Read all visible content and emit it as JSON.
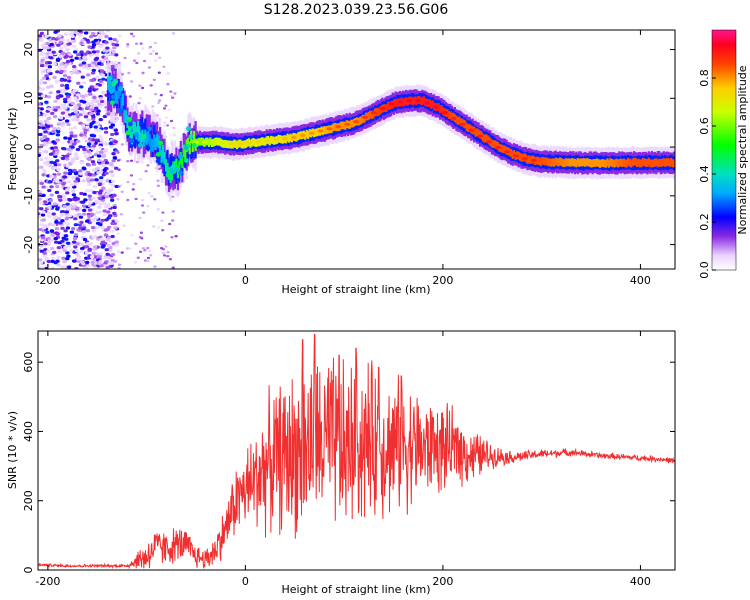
{
  "page": {
    "title": "S128.2023.039.23.56.G06"
  },
  "chart_data": [
    {
      "type": "heatmap",
      "xlabel": "Height of straight line (km)",
      "ylabel": "Frequency (Hz)",
      "xlim": [
        -210,
        435
      ],
      "ylim": [
        -25,
        24
      ],
      "xticks": [
        -200,
        0,
        200,
        400
      ],
      "yticks": [
        -20,
        -10,
        0,
        10,
        20
      ],
      "grid": false,
      "colorbar": {
        "label": "Normalized spectral amplitude",
        "range": [
          0,
          1
        ],
        "ticks": [
          0.0,
          0.2,
          0.4,
          0.6,
          0.8
        ],
        "tick_labels": [
          "0.0",
          "0.2",
          "0.4",
          "0.6",
          "0.8"
        ]
      },
      "ridge": {
        "x": [
          -140,
          -128,
          -118,
          -108,
          -98,
          -88,
          -78,
          -68,
          -58,
          -50,
          -30,
          -10,
          10,
          30,
          50,
          70,
          90,
          110,
          130,
          150,
          165,
          180,
          195,
          210,
          225,
          240,
          255,
          270,
          285,
          300,
          330,
          360,
          390,
          420,
          435
        ],
        "y": [
          12,
          11,
          3,
          3,
          2,
          0,
          -5,
          -4,
          1,
          1,
          1,
          0.5,
          1,
          1.5,
          2,
          3,
          4,
          5,
          7,
          9,
          9.5,
          9.5,
          8,
          6,
          4,
          2,
          0,
          -1.5,
          -2.5,
          -3,
          -3.2,
          -3.3,
          -3.2,
          -3.2,
          -3.2
        ],
        "amplitude": [
          0.35,
          0.3,
          0.4,
          0.4,
          0.3,
          0.35,
          0.45,
          0.5,
          0.6,
          0.6,
          0.65,
          0.7,
          0.7,
          0.7,
          0.75,
          0.75,
          0.8,
          0.8,
          0.85,
          0.9,
          0.9,
          0.9,
          0.9,
          0.85,
          0.85,
          0.85,
          0.85,
          0.85,
          0.85,
          0.85,
          0.8,
          0.8,
          0.85,
          0.85,
          0.85
        ]
      }
    },
    {
      "type": "line",
      "xlabel": "Height of straight line (km)",
      "ylabel": "SNR (10 * v/v)",
      "xlim": [
        -210,
        435
      ],
      "ylim": [
        0,
        690
      ],
      "xticks": [
        -200,
        0,
        200,
        400
      ],
      "yticks": [
        0,
        200,
        400,
        600
      ],
      "grid": false,
      "series": [
        {
          "color": "#f03030",
          "x": [
            -210,
            -180,
            -150,
            -120,
            -100,
            -90,
            -80,
            -70,
            -60,
            -50,
            -40,
            -30,
            -20,
            -10,
            0,
            10,
            20,
            30,
            40,
            50,
            60,
            70,
            80,
            90,
            100,
            110,
            120,
            130,
            140,
            150,
            160,
            170,
            180,
            190,
            200,
            210,
            220,
            230,
            240,
            250,
            270,
            300,
            330,
            360,
            390,
            420,
            435
          ],
          "y": [
            15,
            12,
            12,
            12,
            40,
            70,
            60,
            75,
            70,
            40,
            30,
            60,
            120,
            200,
            230,
            260,
            300,
            320,
            330,
            340,
            350,
            360,
            370,
            360,
            340,
            370,
            370,
            370,
            360,
            360,
            360,
            360,
            350,
            350,
            350,
            350,
            340,
            330,
            330,
            330,
            325,
            335,
            340,
            330,
            325,
            320,
            315
          ],
          "noise_band": [
            5,
            5,
            5,
            5,
            60,
            60,
            60,
            60,
            60,
            40,
            40,
            60,
            80,
            120,
            140,
            180,
            220,
            240,
            260,
            280,
            300,
            300,
            300,
            300,
            300,
            280,
            280,
            260,
            240,
            230,
            220,
            200,
            180,
            160,
            150,
            130,
            110,
            90,
            70,
            40,
            20,
            15,
            12,
            10,
            10,
            10,
            10
          ],
          "spikes": [
            [
              58,
              665
            ],
            [
              70,
              680
            ],
            [
              95,
              620
            ],
            [
              112,
              640
            ],
            [
              135,
              585
            ],
            [
              158,
              560
            ],
            [
              190,
              440
            ],
            [
              215,
              410
            ]
          ]
        }
      ]
    }
  ]
}
